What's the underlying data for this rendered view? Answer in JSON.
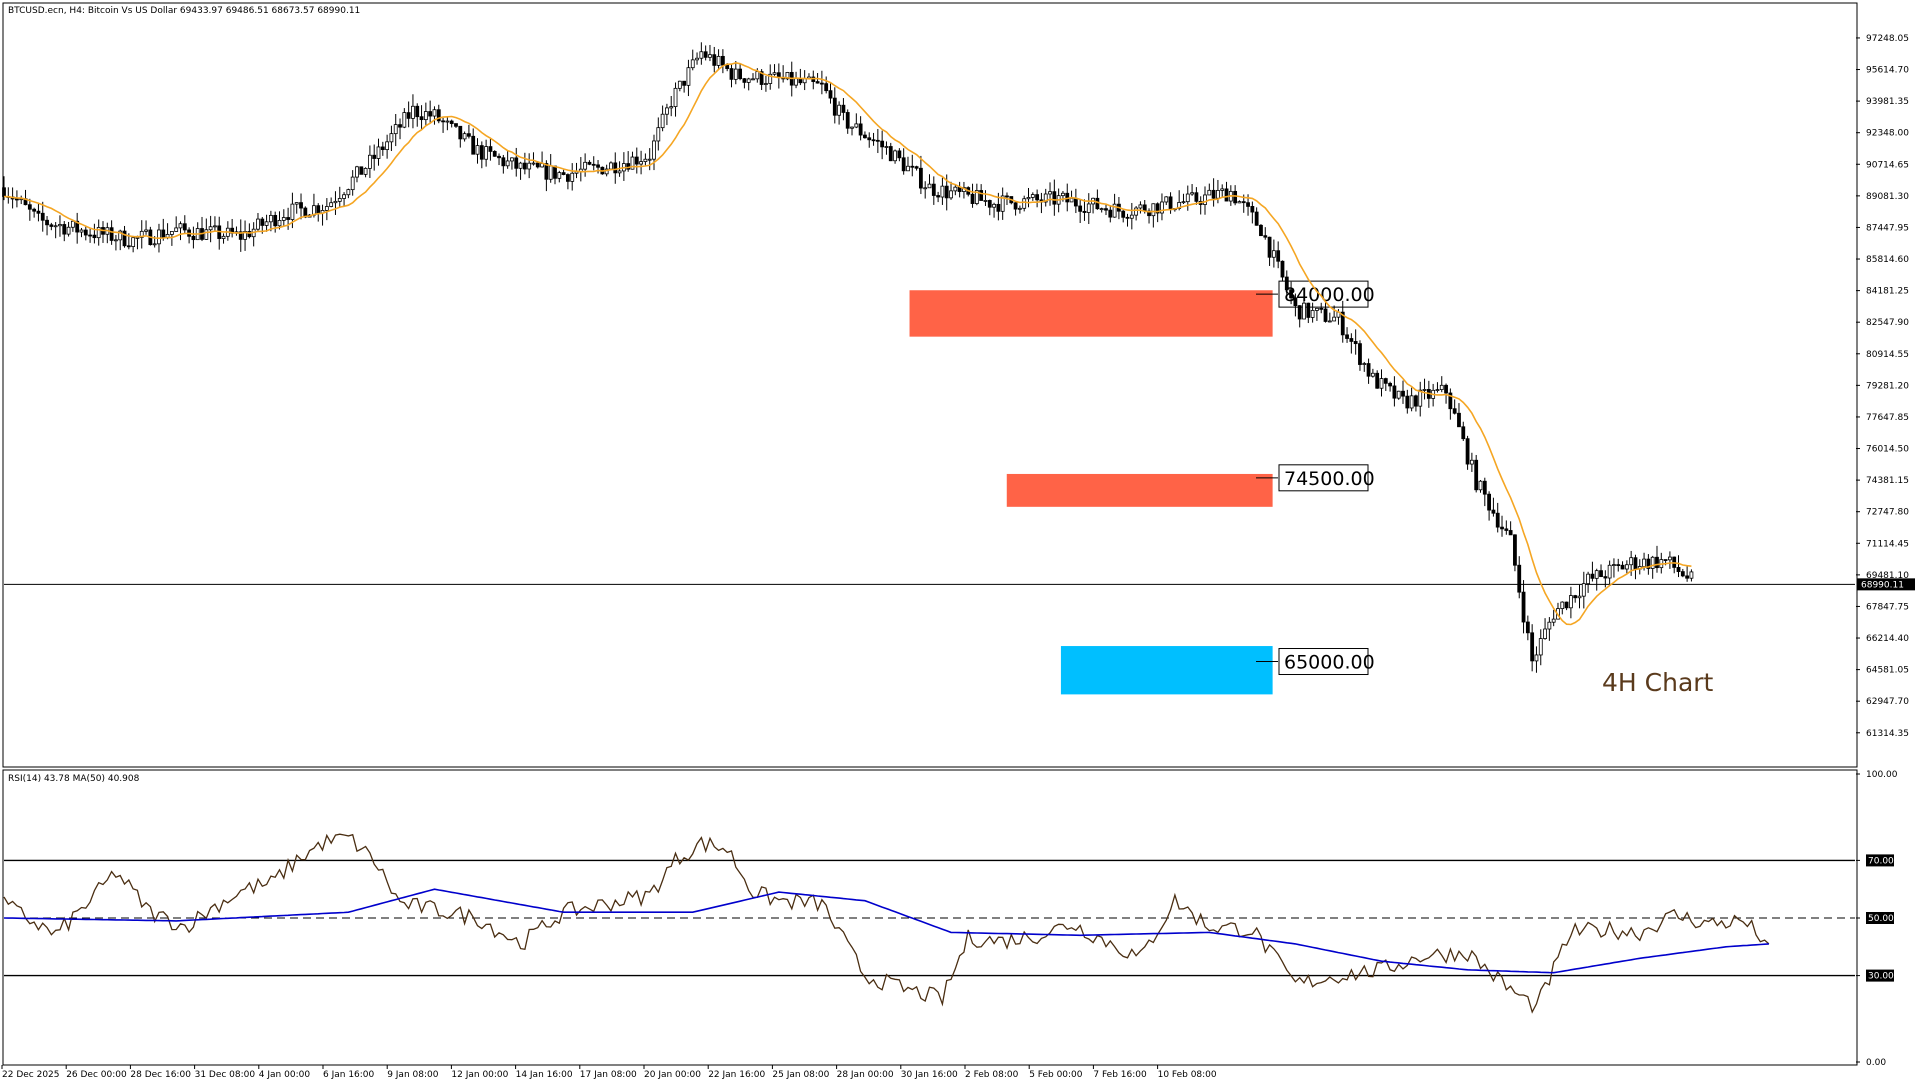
{
  "header": {
    "symbol_line": "BTCUSD.ecn, H4:  Bitcoin Vs US Dollar  69433.97 69486.51 68673.57 68990.11"
  },
  "chart_data": [
    {
      "type": "candlestick",
      "title": "BTCUSD.ecn, H4:  Bitcoin Vs US Dollar  69433.97 69486.51 68673.57 68990.11",
      "annotation": "4H Chart",
      "current_price": 68990.11,
      "current_price_label": "68990.11",
      "ylim": [
        59700,
        98900
      ],
      "y_ticks": [
        "97248.05",
        "95614.70",
        "93981.35",
        "92348.00",
        "90714.65",
        "89081.30",
        "87447.95",
        "85814.60",
        "84181.25",
        "82547.90",
        "80914.55",
        "79281.20",
        "77647.85",
        "76014.50",
        "74381.15",
        "72747.80",
        "71114.45",
        "69481.10",
        "67847.75",
        "66214.40",
        "64581.05",
        "62947.70",
        "61314.35"
      ],
      "x_ticks": [
        "22 Dec 2025",
        "26 Dec 00:00",
        "28 Dec 16:00",
        "31 Dec 08:00",
        "4 Jan 00:00",
        "6 Jan 16:00",
        "9 Jan 08:00",
        "12 Jan 00:00",
        "14 Jan 16:00",
        "17 Jan 08:00",
        "20 Jan 00:00",
        "22 Jan 16:00",
        "25 Jan 08:00",
        "28 Jan 00:00",
        "30 Jan 16:00",
        "2 Feb 08:00",
        "5 Feb 00:00",
        "7 Feb 16:00",
        "10 Feb 08:00"
      ],
      "price_path": [
        [
          0,
          89500
        ],
        [
          8,
          87800
        ],
        [
          20,
          87200
        ],
        [
          30,
          86800
        ],
        [
          40,
          87300
        ],
        [
          55,
          87000
        ],
        [
          65,
          88200
        ],
        [
          75,
          88600
        ],
        [
          85,
          90800
        ],
        [
          95,
          93500
        ],
        [
          100,
          93200
        ],
        [
          110,
          91400
        ],
        [
          120,
          90500
        ],
        [
          130,
          90200
        ],
        [
          140,
          90600
        ],
        [
          150,
          91200
        ],
        [
          155,
          94000
        ],
        [
          162,
          96500
        ],
        [
          170,
          95300
        ],
        [
          180,
          95100
        ],
        [
          190,
          94700
        ],
        [
          195,
          93000
        ],
        [
          205,
          91500
        ],
        [
          215,
          89500
        ],
        [
          230,
          88700
        ],
        [
          245,
          88900
        ],
        [
          260,
          88300
        ],
        [
          275,
          88800
        ],
        [
          285,
          89300
        ],
        [
          292,
          87400
        ],
        [
          300,
          83200
        ],
        [
          310,
          82700
        ],
        [
          318,
          79600
        ],
        [
          325,
          78400
        ],
        [
          335,
          79000
        ],
        [
          342,
          74300
        ],
        [
          350,
          71200
        ],
        [
          355,
          65000
        ],
        [
          360,
          67500
        ],
        [
          368,
          69200
        ],
        [
          378,
          70100
        ],
        [
          386,
          70200
        ],
        [
          392,
          69200
        ]
      ],
      "levels": [
        {
          "label": "84000.00",
          "value": 84000,
          "zone": [
            81800,
            84200
          ],
          "color": "#ff6347"
        },
        {
          "label": "74500.00",
          "value": 74500,
          "zone": [
            73000,
            74700
          ],
          "color": "#ff6347"
        },
        {
          "label": "65000.00",
          "value": 65000,
          "zone": [
            63300,
            65800
          ],
          "color": "#00bfff"
        }
      ],
      "series": [
        {
          "name": "",
          "kind": "moving average",
          "color": "#f5a623"
        }
      ],
      "colors": {
        "candle": "#000000",
        "moving_average": "#f5a623"
      }
    },
    {
      "type": "line",
      "title": "RSI(14) 43.78 MA(50) 40.908",
      "ylim": [
        0,
        100
      ],
      "y_ticks": [
        "100.00",
        "70.00",
        "50.00",
        "30.00",
        "0.00"
      ],
      "levels": [
        70,
        50,
        30
      ],
      "rsi_path": [
        [
          0,
          55
        ],
        [
          12,
          44
        ],
        [
          20,
          56
        ],
        [
          26,
          66
        ],
        [
          34,
          52
        ],
        [
          42,
          47
        ],
        [
          50,
          55
        ],
        [
          56,
          60
        ],
        [
          62,
          62
        ],
        [
          68,
          70
        ],
        [
          74,
          76
        ],
        [
          80,
          78
        ],
        [
          86,
          70
        ],
        [
          92,
          55
        ],
        [
          100,
          53
        ],
        [
          110,
          50
        ],
        [
          120,
          41
        ],
        [
          130,
          52
        ],
        [
          140,
          55
        ],
        [
          150,
          58
        ],
        [
          156,
          70
        ],
        [
          162,
          76
        ],
        [
          168,
          74
        ],
        [
          174,
          59
        ],
        [
          180,
          56
        ],
        [
          190,
          55
        ],
        [
          200,
          30
        ],
        [
          210,
          25
        ],
        [
          218,
          22
        ],
        [
          224,
          43
        ],
        [
          232,
          42
        ],
        [
          240,
          44
        ],
        [
          248,
          48
        ],
        [
          256,
          42
        ],
        [
          264,
          36
        ],
        [
          272,
          56
        ],
        [
          280,
          47
        ],
        [
          290,
          46
        ],
        [
          300,
          27
        ],
        [
          310,
          30
        ],
        [
          320,
          32
        ],
        [
          330,
          37
        ],
        [
          340,
          38
        ],
        [
          350,
          25
        ],
        [
          356,
          19
        ],
        [
          364,
          45
        ],
        [
          372,
          46
        ],
        [
          380,
          45
        ],
        [
          388,
          51
        ],
        [
          396,
          48
        ],
        [
          404,
          49
        ],
        [
          410,
          41
        ]
      ],
      "ma_path": [
        [
          0,
          50
        ],
        [
          40,
          49
        ],
        [
          80,
          52
        ],
        [
          100,
          60
        ],
        [
          130,
          52
        ],
        [
          160,
          52
        ],
        [
          180,
          59
        ],
        [
          200,
          56
        ],
        [
          220,
          45
        ],
        [
          250,
          44
        ],
        [
          280,
          45
        ],
        [
          300,
          41
        ],
        [
          320,
          35
        ],
        [
          340,
          32
        ],
        [
          360,
          31
        ],
        [
          380,
          36
        ],
        [
          400,
          40
        ],
        [
          410,
          41
        ]
      ],
      "colors": {
        "rsi": "#4a2e12",
        "ma": "#0000cc"
      }
    }
  ]
}
